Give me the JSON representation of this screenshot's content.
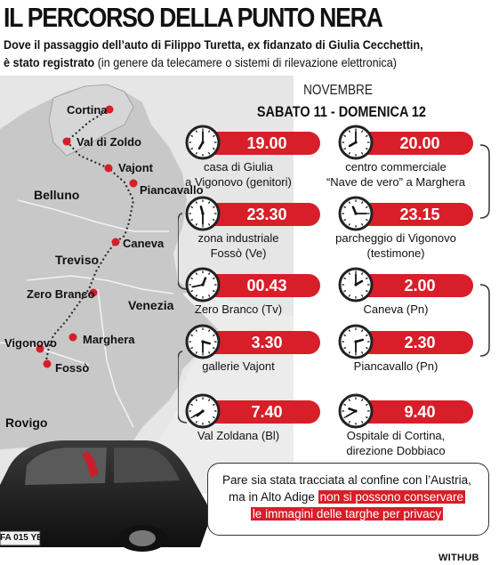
{
  "title": "IL PERCORSO DELLA PUNTO NERA",
  "subtitle_bold": "Dove il passaggio dell’auto di Filippo Turetta, ex fidanzato di Giulia Cecchettin,",
  "subtitle_line2_bold": "è stato registrato",
  "subtitle_line2_rest": " (in genere da telecamere o sistemi di rilevazione elettronica)",
  "map": {
    "places": [
      "Cortina",
      "Val di Zoldo",
      "Vajont",
      "Piancavallo",
      "Caneva",
      "Zero Branco",
      "Marghera",
      "Vigonovo",
      "Fossò"
    ],
    "regions": [
      "Belluno",
      "Treviso",
      "Venezia",
      "Rovigo"
    ]
  },
  "timeline": {
    "month": "NOVEMBRE",
    "dates": "SABATO 11 - DOMENICA 12",
    "events": [
      {
        "time": "19.00",
        "line1": "casa di Giulia",
        "line2": "a Vigonovo (genitori)"
      },
      {
        "time": "20.00",
        "line1": "centro commerciale",
        "line2": "“Nave de vero” a Marghera"
      },
      {
        "time": "23.30",
        "line1": "zona industriale",
        "line2": "Fossò (Ve)"
      },
      {
        "time": "23.15",
        "line1": "parcheggio di Vigonovo",
        "line2": "(testimone)"
      },
      {
        "time": "00.43",
        "line1": "Zero Branco (Tv)",
        "line2": ""
      },
      {
        "time": "2.00",
        "line1": "Caneva (Pn)",
        "line2": ""
      },
      {
        "time": "3.30",
        "line1": "gallerie Vajont",
        "line2": ""
      },
      {
        "time": "2.30",
        "line1": "Piancavallo (Pn)",
        "line2": ""
      },
      {
        "time": "7.40",
        "line1": "Val Zoldana (Bl)",
        "line2": ""
      },
      {
        "time": "9.40",
        "line1": "Ospitale di Cortina,",
        "line2": "direzione Dobbiaco"
      }
    ]
  },
  "note": {
    "line1": "Pare sia stata tracciata al confine con l’Austria,",
    "line2_plain": "ma in Alto Adige ",
    "line2_highlight": "non si possono conservare",
    "line3_highlight": "le immagini delle targhe per privacy"
  },
  "car_plate": "FA 015 YE",
  "credit": "WITHUB",
  "colors": {
    "accent": "#d81e28",
    "map_land": "#c9c9c9",
    "map_water": "#e8e8e8"
  }
}
